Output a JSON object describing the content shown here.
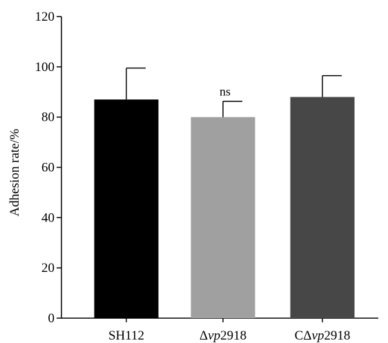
{
  "chart_data": {
    "type": "bar",
    "categories": [
      {
        "parts": [
          {
            "t": "SH112",
            "i": false
          }
        ]
      },
      {
        "parts": [
          {
            "t": "Δ",
            "i": false
          },
          {
            "t": "vp",
            "i": true
          },
          {
            "t": "2918",
            "i": false
          }
        ]
      },
      {
        "parts": [
          {
            "t": "CΔ",
            "i": false
          },
          {
            "t": "vp",
            "i": true
          },
          {
            "t": "2918",
            "i": false
          }
        ]
      }
    ],
    "values": [
      87,
      80,
      88
    ],
    "errors": [
      12.5,
      6.3,
      8.5
    ],
    "colors": [
      "#000000",
      "#a0a0a0",
      "#474747"
    ],
    "annotations": [
      "",
      "ns",
      ""
    ],
    "ylabel": "Adhesion rate/%",
    "ylim": [
      0,
      120
    ],
    "yticks": [
      0,
      20,
      40,
      60,
      80,
      100,
      120
    ],
    "grid": false
  }
}
